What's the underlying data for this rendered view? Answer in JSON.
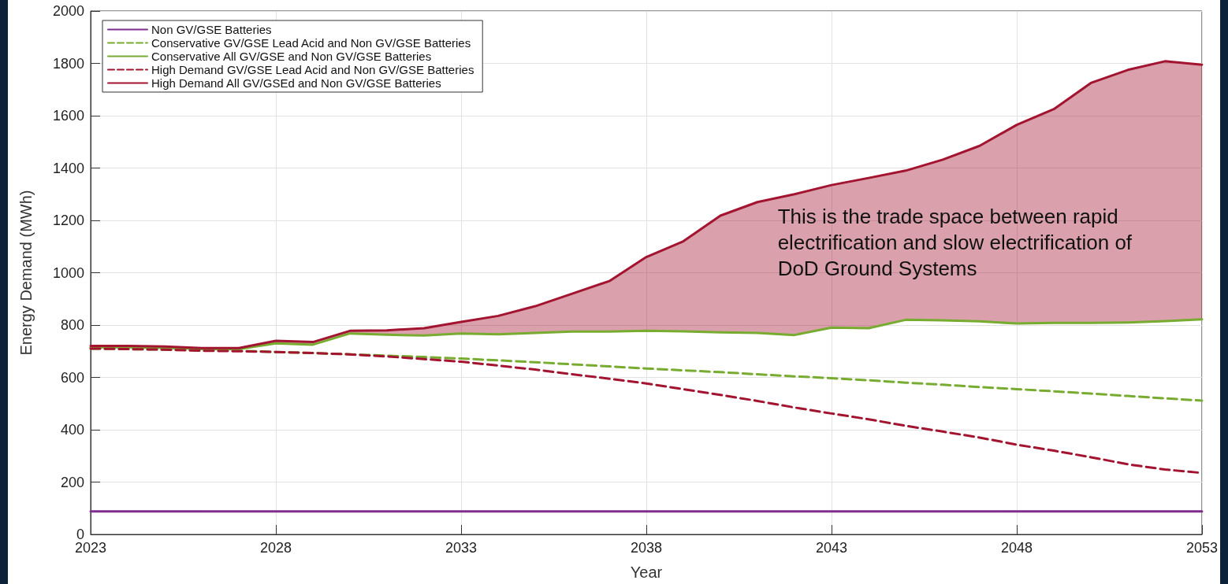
{
  "chart_data": {
    "type": "line",
    "xlabel": "Year",
    "ylabel": "Energy Demand (MWh)",
    "x": [
      2023,
      2024,
      2025,
      2026,
      2027,
      2028,
      2029,
      2030,
      2031,
      2032,
      2033,
      2034,
      2035,
      2036,
      2037,
      2038,
      2039,
      2040,
      2041,
      2042,
      2043,
      2044,
      2045,
      2046,
      2047,
      2048,
      2049,
      2050,
      2051,
      2052,
      2053
    ],
    "xlim": [
      2023,
      2053
    ],
    "xticks": [
      2023,
      2028,
      2033,
      2038,
      2043,
      2048,
      2053
    ],
    "ylim": [
      0,
      2000
    ],
    "yticks": [
      0,
      200,
      400,
      600,
      800,
      1000,
      1200,
      1400,
      1600,
      1800,
      2000
    ],
    "grid": true,
    "legend": "top left",
    "marker": "none",
    "annotations": [
      "This is the trade space between rapid\nelectrification and slow electrification of\nDoD Ground Systems"
    ],
    "series": [
      {
        "name": "Non GV/GSE Batteries",
        "color": "#7e2f8e",
        "line_style": "solid",
        "values": [
          88,
          88,
          88,
          88,
          88,
          88,
          88,
          88,
          88,
          88,
          88,
          88,
          88,
          88,
          88,
          88,
          88,
          88,
          88,
          88,
          88,
          88,
          88,
          88,
          88,
          88,
          88,
          88,
          88,
          88,
          88
        ]
      },
      {
        "name": "Conservative GV/GSE Lead Acid and Non GV/GSE Batteries",
        "color": "#77ac30",
        "line_style": "dashed",
        "values": [
          710,
          708,
          706,
          704,
          702,
          697,
          693,
          688,
          683,
          678,
          672,
          665,
          658,
          650,
          642,
          634,
          627,
          620,
          612,
          604,
          597,
          589,
          580,
          572,
          563,
          555,
          547,
          538,
          529,
          520,
          511
        ]
      },
      {
        "name": "Conservative All GV/GSE and Non GV/GSE Batteries",
        "color": "#77ac30",
        "line_style": "solid",
        "values": [
          715,
          715,
          713,
          708,
          708,
          730,
          725,
          768,
          763,
          760,
          768,
          765,
          770,
          775,
          775,
          778,
          776,
          772,
          770,
          762,
          790,
          788,
          820,
          818,
          814,
          806,
          808,
          808,
          810,
          815,
          822
        ]
      },
      {
        "name": "High Demand GV/GSE Lead Acid and Non GV/GSE Batteries",
        "color": "#a2142f",
        "line_style": "dashed",
        "values": [
          710,
          708,
          706,
          702,
          700,
          697,
          693,
          688,
          680,
          670,
          660,
          645,
          630,
          612,
          595,
          577,
          555,
          533,
          510,
          485,
          462,
          440,
          415,
          393,
          370,
          343,
          320,
          295,
          268,
          248,
          235
        ]
      },
      {
        "name": "High Demand All GV/GSEd and Non GV/GSE Batteries",
        "color": "#a2142f",
        "line_style": "solid",
        "values": [
          720,
          720,
          718,
          712,
          712,
          740,
          735,
          778,
          780,
          788,
          812,
          835,
          872,
          920,
          968,
          1060,
          1120,
          1218,
          1270,
          1300,
          1335,
          1362,
          1390,
          1432,
          1485,
          1565,
          1625,
          1725,
          1775,
          1808,
          1795
        ],
        "lower": [
          715,
          715,
          713,
          708,
          708,
          730,
          725,
          768,
          763,
          760,
          768,
          765,
          770,
          775,
          775,
          778,
          776,
          772,
          770,
          762,
          790,
          788,
          820,
          818,
          814,
          806,
          808,
          808,
          810,
          815,
          822
        ],
        "upper": [
          720,
          720,
          718,
          712,
          712,
          740,
          735,
          778,
          780,
          788,
          812,
          835,
          872,
          920,
          968,
          1060,
          1120,
          1218,
          1270,
          1300,
          1335,
          1362,
          1390,
          1432,
          1485,
          1565,
          1625,
          1725,
          1775,
          1808,
          1795
        ]
      }
    ]
  }
}
